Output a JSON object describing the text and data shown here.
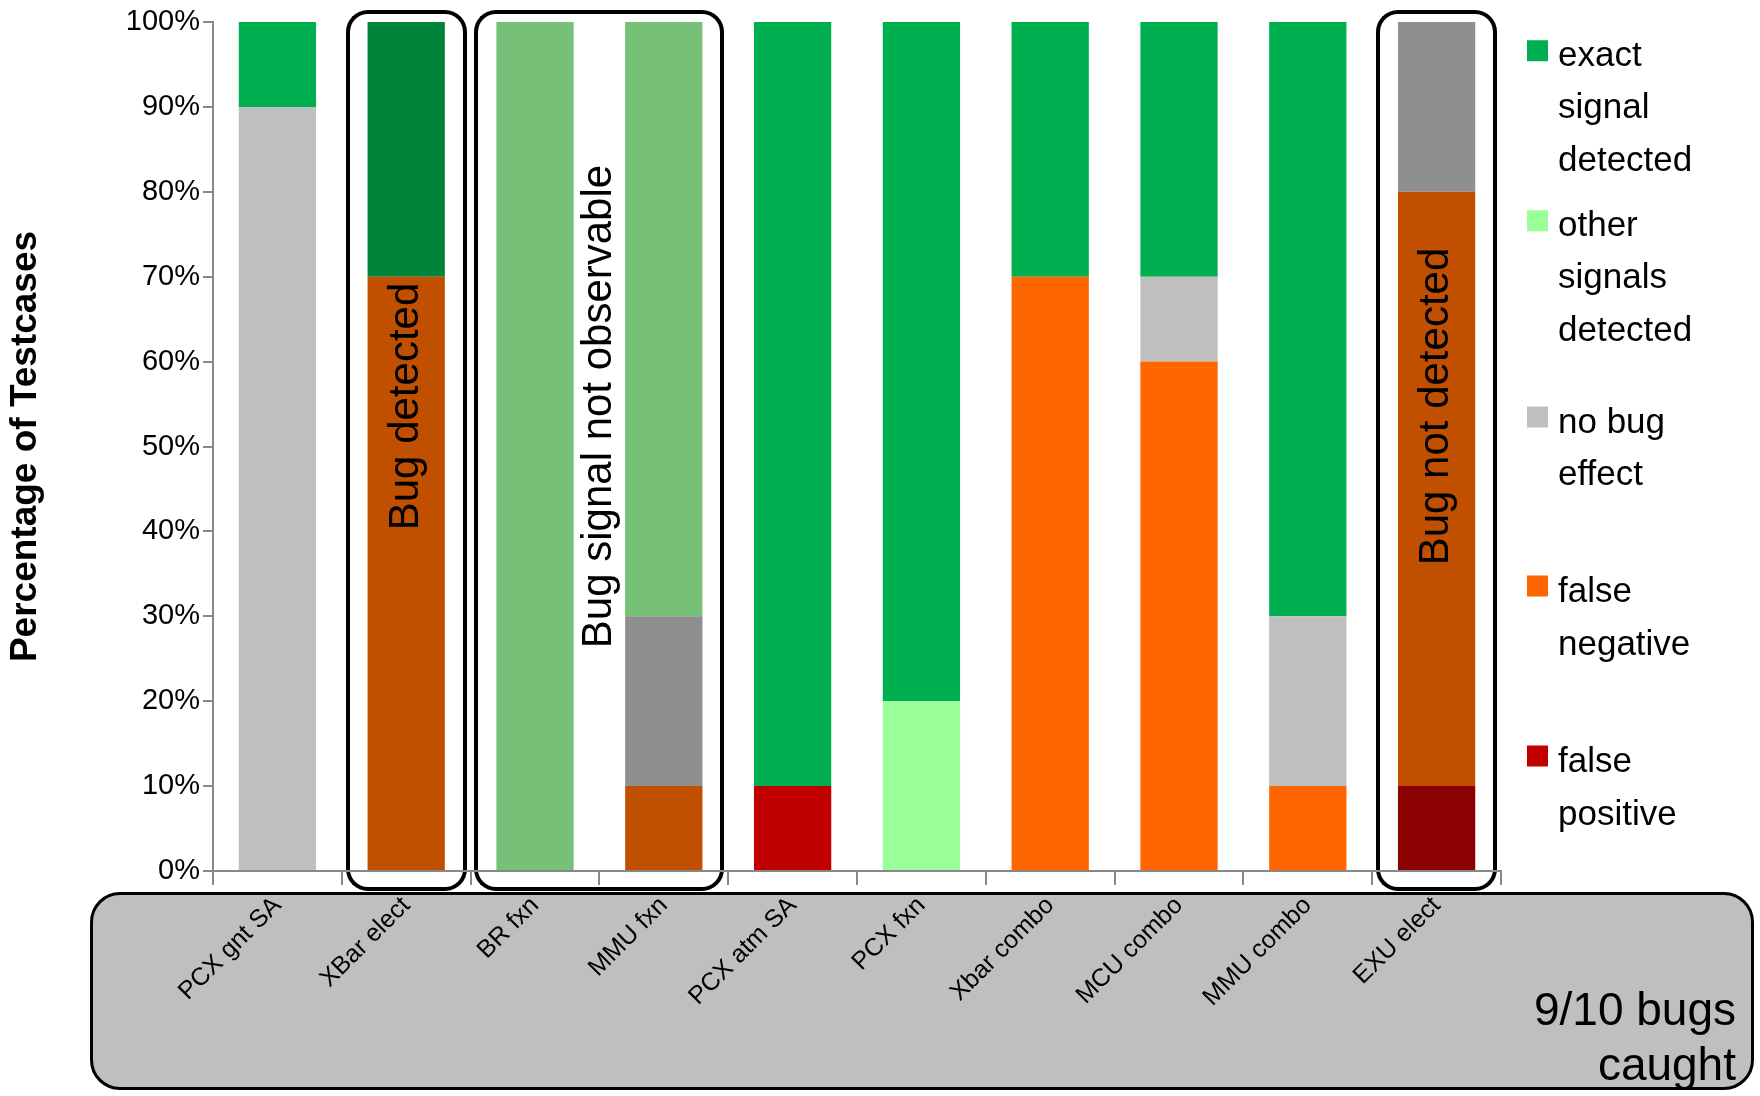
{
  "chart_data": {
    "type": "bar",
    "stacked": true,
    "ylabel": "Percentage of Testcases",
    "categories": [
      "PCX gnt SA",
      "XBar elect",
      "BR fxn",
      "MMU fxn",
      "PCX atm SA",
      "PCX fxn",
      "Xbar combo",
      "MCU combo",
      "MMU combo",
      "EXU elect"
    ],
    "series": [
      {
        "name": "false positive",
        "color": "#c00000",
        "colors": [
          "#c00000",
          "#c00000",
          "#c00000",
          "#c00000",
          "#c00000",
          "#c00000",
          "#c00000",
          "#c00000",
          "#c00000",
          "#8b0000"
        ],
        "values": [
          null,
          null,
          null,
          null,
          10,
          null,
          null,
          null,
          null,
          10
        ]
      },
      {
        "name": "false negative",
        "color": "#ff6600",
        "colors": [
          "#ff6600",
          "#c04f00",
          "#c04f00",
          "#c04f00",
          "#ff6600",
          "#ff6600",
          "#ff6600",
          "#ff6600",
          "#ff6600",
          "#c04f00"
        ],
        "values": [
          null,
          70,
          null,
          10,
          null,
          null,
          70,
          60,
          10,
          70
        ]
      },
      {
        "name": "no bug effect",
        "color": "#bfbfbf",
        "colors": [
          "#bfbfbf",
          "#8f8f8f",
          "#8f8f8f",
          "#8f8f8f",
          "#bfbfbf",
          "#bfbfbf",
          "#bfbfbf",
          "#bfbfbf",
          "#bfbfbf",
          "#8f8f8f"
        ],
        "values": [
          90,
          null,
          null,
          20,
          null,
          null,
          null,
          10,
          20,
          20
        ]
      },
      {
        "name": "other signals detected",
        "color": "#99ff99",
        "colors": [
          "#99ff99",
          "#77c077",
          "#77c077",
          "#77c077",
          "#99ff99",
          "#99ff99",
          "#99ff99",
          "#99ff99",
          "#99ff99",
          "#77c077"
        ],
        "values": [
          null,
          null,
          100,
          70,
          null,
          20,
          null,
          null,
          null,
          null
        ]
      },
      {
        "name": "exact signal detected",
        "color": "#00b050",
        "colors": [
          "#00b050",
          "#00843c",
          "#00843c",
          "#00843c",
          "#00b050",
          "#00b050",
          "#00b050",
          "#00b050",
          "#00b050",
          "#00843c"
        ],
        "values": [
          10,
          30,
          null,
          null,
          90,
          80,
          30,
          30,
          70,
          null
        ]
      }
    ],
    "ylim": [
      0,
      100
    ],
    "yticks": [
      {
        "value": 0,
        "label": "0%"
      },
      {
        "value": 10,
        "label": "10%"
      },
      {
        "value": 20,
        "label": "20%"
      },
      {
        "value": 30,
        "label": "30%"
      },
      {
        "value": 40,
        "label": "40%"
      },
      {
        "value": 50,
        "label": "50%"
      },
      {
        "value": 60,
        "label": "60%"
      },
      {
        "value": 70,
        "label": "70%"
      },
      {
        "value": 80,
        "label": "80%"
      },
      {
        "value": 90,
        "label": "90%"
      },
      {
        "value": 100,
        "label": "100%"
      }
    ],
    "grid": false,
    "legend": "right",
    "annotations": [
      "Bug detected",
      "Bug signal not observable",
      "Bug not detected",
      "9/10 bugs caught"
    ]
  }
}
